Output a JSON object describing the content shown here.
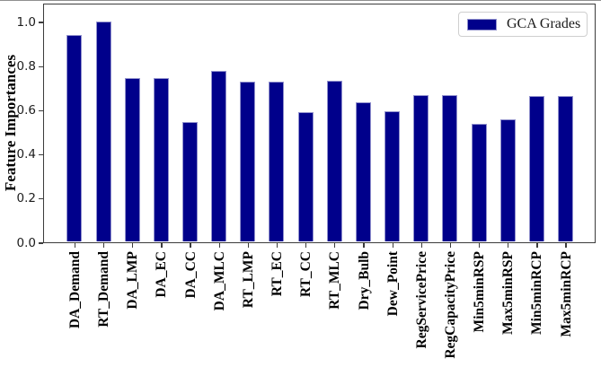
{
  "chart_data": {
    "type": "bar",
    "title": "",
    "xlabel": "",
    "ylabel": "Feature Importances",
    "categories": [
      "DA_Demand",
      "RT_Demand",
      "DA_LMP",
      "DA_EC",
      "DA_CC",
      "DA_MLC",
      "RT_LMP",
      "RT_EC",
      "RT_CC",
      "RT_MLC",
      "Dry_Bulb",
      "Dew_Point",
      "RegServicePrice",
      "RegCapacityPrice",
      "Min5minRSP",
      "Max5minRSP",
      "Min5minRCP",
      "Max5minRCP"
    ],
    "series": [
      {
        "name": "GCA Grades",
        "values": [
          0.94,
          1.0,
          0.745,
          0.745,
          0.545,
          0.78,
          0.73,
          0.73,
          0.59,
          0.735,
          0.635,
          0.595,
          0.67,
          0.67,
          0.54,
          0.56,
          0.665,
          0.665
        ]
      }
    ],
    "legend": {
      "entries": [
        "GCA Grades"
      ],
      "position": "upper right"
    },
    "ylim": [
      0,
      1.085
    ],
    "yticks": [
      0.0,
      0.2,
      0.4,
      0.6,
      0.8,
      1.0
    ],
    "grid": false,
    "colors": {
      "bar_fill": "#00008B",
      "bar_edge": "#9191cd",
      "axis": "#3c3c3c",
      "legend_border": "#cfcfcf",
      "text": "#000000"
    }
  }
}
